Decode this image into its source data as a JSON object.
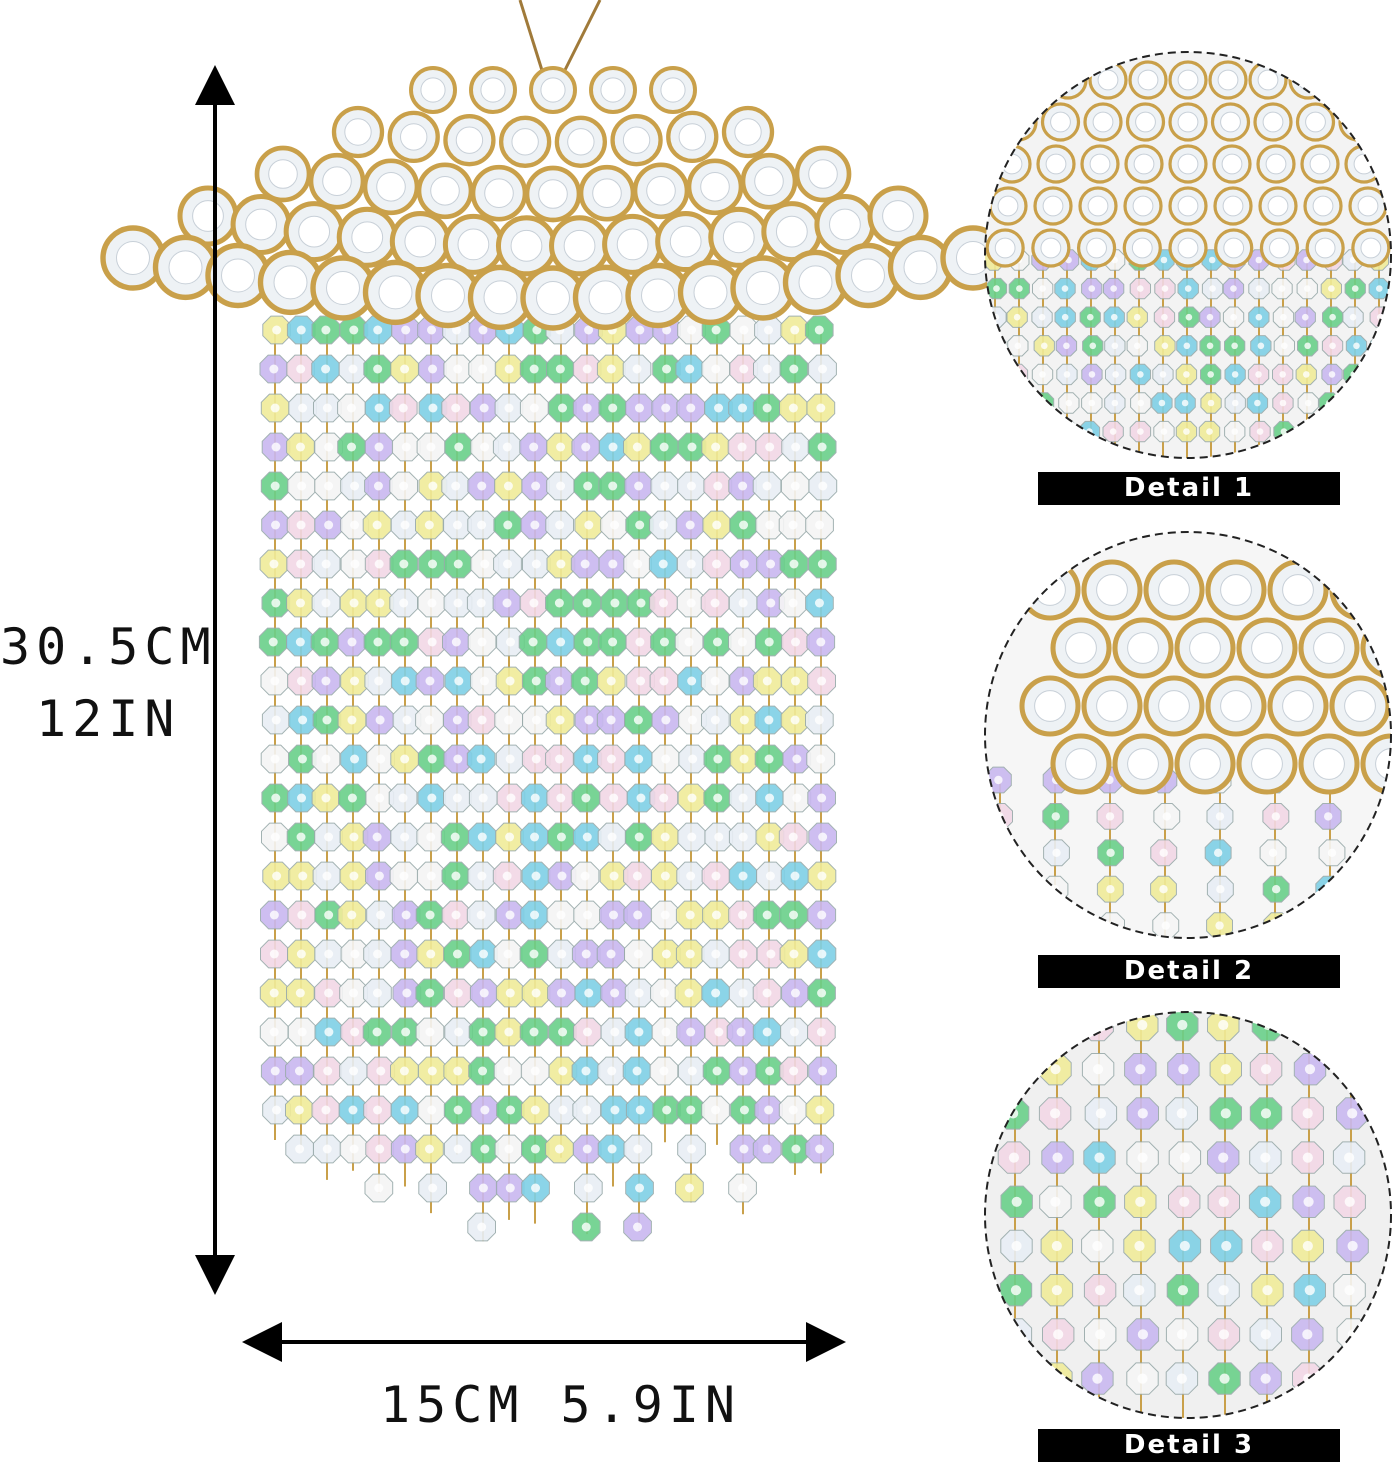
{
  "dimensions": {
    "height_cm": "30.5CM",
    "height_in": "12IN",
    "width": "15CM 5.9IN"
  },
  "details": [
    {
      "label": "Detail 1"
    },
    {
      "label": "Detail 2"
    },
    {
      "label": "Detail 3"
    }
  ],
  "colors": {
    "gold": "#c9a04a",
    "label_bg": "#000000",
    "label_text": "#ffffff",
    "bead_palette": [
      "#e8eef5",
      "#f2d8e6",
      "#f0ec9a",
      "#7fd0e6",
      "#6ad08a",
      "#c9b8f0",
      "#f5f5f5"
    ]
  }
}
